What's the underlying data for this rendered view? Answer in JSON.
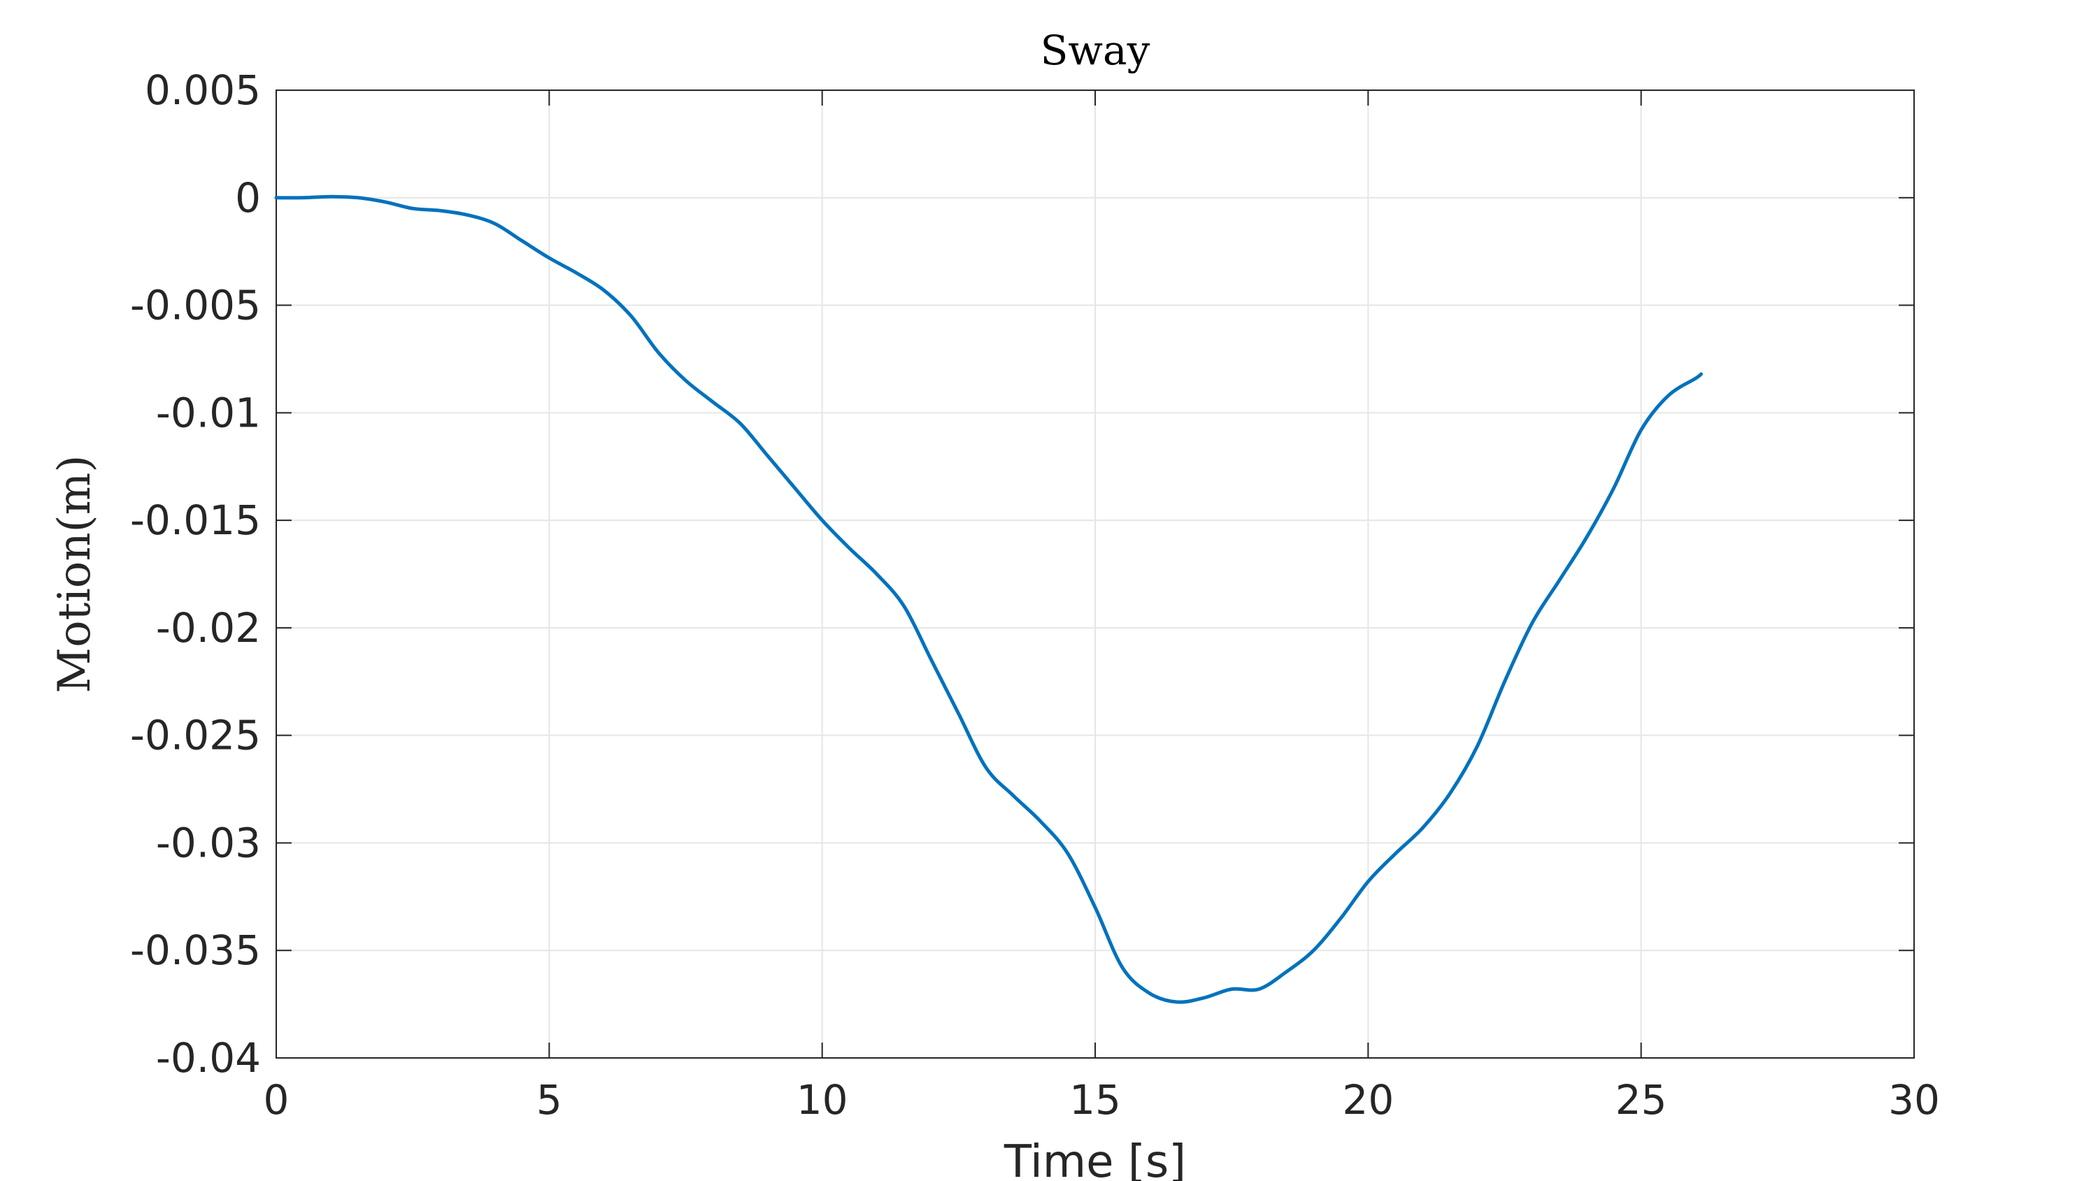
{
  "chart_data": {
    "type": "line",
    "title": "Sway",
    "xlabel": "Time [s]",
    "ylabel": "Motion(m)",
    "xlim": [
      0,
      30
    ],
    "ylim": [
      -0.04,
      0.005
    ],
    "xticks": [
      0,
      5,
      10,
      15,
      20,
      25,
      30
    ],
    "xtick_labels": [
      "0",
      "5",
      "10",
      "15",
      "20",
      "25",
      "30"
    ],
    "yticks": [
      0.005,
      0,
      -0.005,
      -0.01,
      -0.015,
      -0.02,
      -0.025,
      -0.03,
      -0.035,
      -0.04
    ],
    "ytick_labels": [
      "0.005",
      "0",
      "-0.005",
      "-0.01",
      "-0.015",
      "-0.02",
      "-0.025",
      "-0.03",
      "-0.035",
      "-0.04"
    ],
    "grid": true,
    "series": [
      {
        "color": "#0072BD",
        "x": [
          0,
          0.5,
          1,
          1.5,
          2,
          2.5,
          3,
          3.5,
          4,
          4.5,
          5,
          5.5,
          6,
          6.5,
          7,
          7.5,
          8,
          8.5,
          9,
          9.5,
          10,
          10.5,
          11,
          11.5,
          12,
          12.5,
          13,
          13.5,
          14,
          14.5,
          15,
          15.5,
          16,
          16.5,
          17,
          17.5,
          18,
          18.5,
          19,
          19.5,
          20,
          20.5,
          21,
          21.5,
          22,
          22.5,
          23,
          23.5,
          24,
          24.5,
          25,
          25.5,
          26,
          26.1
        ],
        "y": [
          0,
          0,
          5e-05,
          0,
          -0.0002,
          -0.0005,
          -0.0006,
          -0.0008,
          -0.0012,
          -0.002,
          -0.0028,
          -0.0035,
          -0.0043,
          -0.0055,
          -0.0072,
          -0.0085,
          -0.0095,
          -0.0105,
          -0.012,
          -0.0135,
          -0.015,
          -0.0163,
          -0.0175,
          -0.019,
          -0.0215,
          -0.024,
          -0.0265,
          -0.0278,
          -0.029,
          -0.0305,
          -0.033,
          -0.0358,
          -0.037,
          -0.0374,
          -0.0372,
          -0.0368,
          -0.0368,
          -0.036,
          -0.035,
          -0.0335,
          -0.0318,
          -0.0305,
          -0.0293,
          -0.0277,
          -0.0255,
          -0.0225,
          -0.0198,
          -0.0178,
          -0.0158,
          -0.0135,
          -0.0108,
          -0.0092,
          -0.0084,
          -0.0082
        ]
      }
    ]
  }
}
